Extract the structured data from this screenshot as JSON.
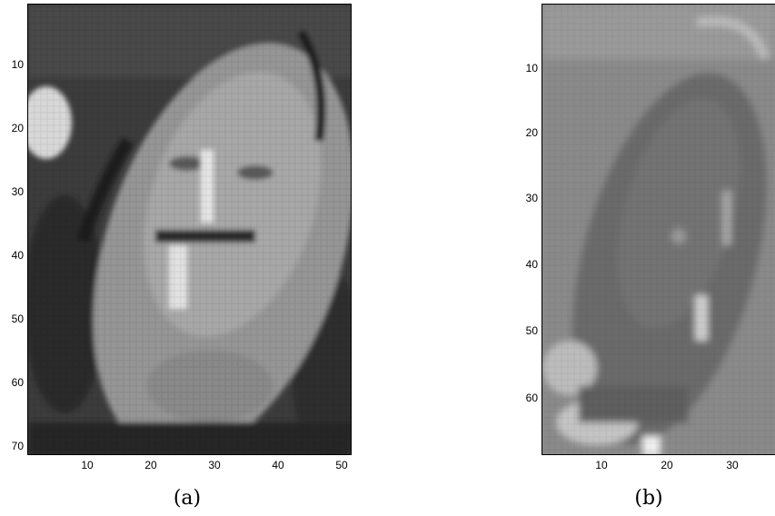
{
  "panels": [
    {
      "caption": "(a)",
      "xticks": [
        "10",
        "20",
        "30",
        "40",
        "50"
      ],
      "yticks": [
        "10",
        "20",
        "30",
        "40",
        "50",
        "60",
        "70"
      ]
    },
    {
      "caption": "(b)",
      "xticks": [
        "10",
        "20",
        "30"
      ],
      "yticks": [
        "10",
        "20",
        "30",
        "40",
        "50",
        "60"
      ]
    }
  ],
  "colors": {
    "background": "#ffffff",
    "axis": "#000000"
  }
}
